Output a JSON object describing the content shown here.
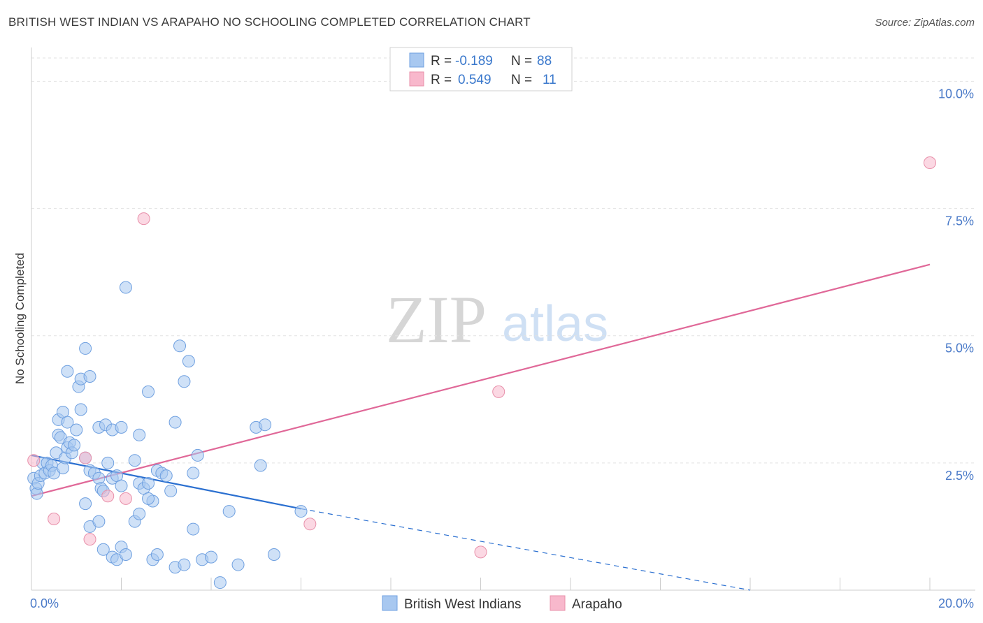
{
  "title": "BRITISH WEST INDIAN VS ARAPAHO NO SCHOOLING COMPLETED CORRELATION CHART",
  "source": "Source: ZipAtlas.com",
  "watermark": {
    "zip": "ZIP",
    "atlas": "atlas"
  },
  "chart_data": {
    "type": "scatter",
    "title": "BRITISH WEST INDIAN VS ARAPAHO NO SCHOOLING COMPLETED CORRELATION CHART",
    "xlabel": "",
    "ylabel": "No Schooling Completed",
    "xlim": [
      0,
      20
    ],
    "ylim": [
      0,
      10.5
    ],
    "x_tick_labels": [
      {
        "value": 0,
        "label": "0.0%"
      },
      {
        "value": 20,
        "label": "20.0%"
      }
    ],
    "y_tick_labels": [
      {
        "value": 2.5,
        "label": "2.5%"
      },
      {
        "value": 5.0,
        "label": "5.0%"
      },
      {
        "value": 7.5,
        "label": "7.5%"
      },
      {
        "value": 10.0,
        "label": "10.0%"
      }
    ],
    "grid": true,
    "legend": {
      "placement": "top-center",
      "entries": [
        {
          "r_label": "R =",
          "r_value": "-0.189",
          "n_label": "N =",
          "n_value": "88",
          "color": "#a8c8f0"
        },
        {
          "r_label": "R =",
          "r_value": "0.549",
          "n_label": "N =",
          "n_value": "11",
          "color": "#f8b8cc"
        }
      ]
    },
    "series": [
      {
        "name": "British West Indians",
        "color": "#a8c8f0",
        "stroke": "#6fa0e0",
        "trend": {
          "x": [
            0,
            6
          ],
          "y": [
            2.65,
            1.6
          ],
          "dashed_to": [
            16.0,
            0.0
          ],
          "color": "#2a6fd0"
        },
        "points": [
          [
            0.05,
            2.2
          ],
          [
            0.1,
            2.0
          ],
          [
            0.12,
            1.9
          ],
          [
            0.15,
            2.1
          ],
          [
            0.2,
            2.25
          ],
          [
            0.25,
            2.5
          ],
          [
            0.3,
            2.3
          ],
          [
            0.35,
            2.5
          ],
          [
            0.4,
            2.35
          ],
          [
            0.45,
            2.45
          ],
          [
            0.5,
            2.3
          ],
          [
            0.55,
            2.7
          ],
          [
            0.6,
            3.05
          ],
          [
            0.65,
            3.0
          ],
          [
            0.7,
            2.4
          ],
          [
            0.75,
            2.6
          ],
          [
            0.8,
            2.8
          ],
          [
            0.85,
            2.9
          ],
          [
            0.9,
            2.7
          ],
          [
            0.95,
            2.85
          ],
          [
            0.6,
            3.35
          ],
          [
            0.7,
            3.5
          ],
          [
            0.8,
            3.3
          ],
          [
            1.0,
            3.15
          ],
          [
            1.1,
            3.55
          ],
          [
            0.8,
            4.3
          ],
          [
            1.05,
            4.0
          ],
          [
            1.1,
            4.15
          ],
          [
            1.2,
            4.75
          ],
          [
            1.3,
            4.2
          ],
          [
            1.2,
            2.6
          ],
          [
            1.3,
            2.35
          ],
          [
            1.4,
            2.3
          ],
          [
            1.5,
            2.2
          ],
          [
            1.55,
            2.0
          ],
          [
            1.6,
            1.95
          ],
          [
            1.7,
            2.5
          ],
          [
            1.8,
            2.2
          ],
          [
            1.9,
            2.25
          ],
          [
            2.0,
            2.05
          ],
          [
            1.5,
            3.2
          ],
          [
            1.65,
            3.25
          ],
          [
            1.8,
            3.15
          ],
          [
            2.0,
            3.2
          ],
          [
            2.1,
            5.95
          ],
          [
            2.3,
            2.55
          ],
          [
            2.4,
            2.1
          ],
          [
            2.5,
            2.0
          ],
          [
            2.6,
            2.1
          ],
          [
            2.7,
            1.75
          ],
          [
            2.8,
            2.35
          ],
          [
            2.9,
            2.3
          ],
          [
            3.0,
            2.25
          ],
          [
            3.1,
            1.95
          ],
          [
            3.2,
            3.3
          ],
          [
            3.3,
            4.8
          ],
          [
            3.4,
            4.1
          ],
          [
            3.5,
            4.5
          ],
          [
            3.6,
            2.3
          ],
          [
            3.7,
            2.65
          ],
          [
            1.2,
            1.7
          ],
          [
            1.3,
            1.25
          ],
          [
            1.5,
            1.35
          ],
          [
            1.6,
            0.8
          ],
          [
            1.8,
            0.65
          ],
          [
            1.9,
            0.6
          ],
          [
            2.0,
            0.85
          ],
          [
            2.1,
            0.7
          ],
          [
            2.3,
            1.35
          ],
          [
            2.4,
            1.5
          ],
          [
            2.6,
            1.8
          ],
          [
            2.7,
            0.6
          ],
          [
            2.8,
            0.7
          ],
          [
            3.2,
            0.45
          ],
          [
            3.4,
            0.5
          ],
          [
            3.6,
            1.2
          ],
          [
            3.8,
            0.6
          ],
          [
            4.0,
            0.65
          ],
          [
            4.2,
            0.15
          ],
          [
            4.4,
            1.55
          ],
          [
            4.6,
            0.5
          ],
          [
            5.0,
            3.2
          ],
          [
            5.1,
            2.45
          ],
          [
            5.2,
            3.25
          ],
          [
            5.4,
            0.7
          ],
          [
            6.0,
            1.55
          ],
          [
            2.4,
            3.05
          ],
          [
            2.6,
            3.9
          ]
        ]
      },
      {
        "name": "Arapaho",
        "color": "#f8b8cc",
        "stroke": "#e890aa",
        "trend": {
          "x": [
            0,
            20
          ],
          "y": [
            1.85,
            6.4
          ],
          "color": "#e06898"
        },
        "points": [
          [
            0.05,
            2.55
          ],
          [
            0.5,
            1.4
          ],
          [
            1.2,
            2.6
          ],
          [
            1.3,
            1.0
          ],
          [
            1.7,
            1.85
          ],
          [
            2.1,
            1.8
          ],
          [
            2.5,
            7.3
          ],
          [
            6.2,
            1.3
          ],
          [
            10.0,
            0.75
          ],
          [
            10.4,
            3.9
          ],
          [
            20.0,
            8.4
          ]
        ]
      }
    ]
  }
}
